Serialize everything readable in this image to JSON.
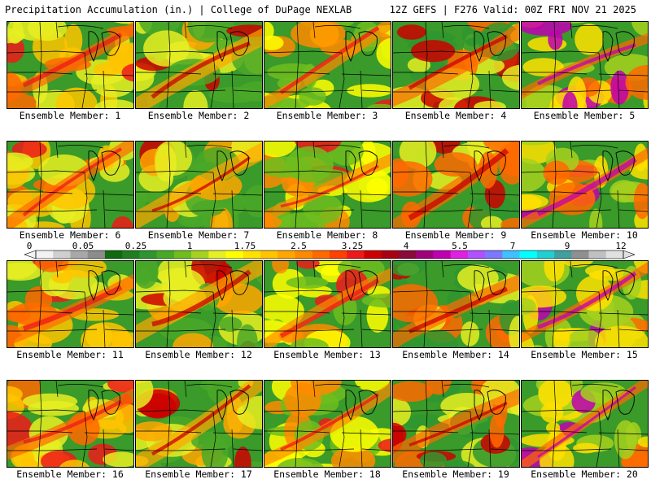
{
  "header": {
    "left": "Precipitation Accumulation (in.) | College of DuPage NEXLAB",
    "right": "12Z GEFS | F276 Valid: 00Z FRI NOV 21 2025"
  },
  "panels": [
    {
      "label": "Ensemble Member: 1"
    },
    {
      "label": "Ensemble Member: 2"
    },
    {
      "label": "Ensemble Member: 3"
    },
    {
      "label": "Ensemble Member: 4"
    },
    {
      "label": "Ensemble Member: 5"
    },
    {
      "label": "Ensemble Member: 6"
    },
    {
      "label": "Ensemble Member: 7"
    },
    {
      "label": "Ensemble Member: 8"
    },
    {
      "label": "Ensemble Member: 9"
    },
    {
      "label": "Ensemble Member: 10"
    },
    {
      "label": "Ensemble Member: 11"
    },
    {
      "label": "Ensemble Member: 12"
    },
    {
      "label": "Ensemble Member: 13"
    },
    {
      "label": "Ensemble Member: 14"
    },
    {
      "label": "Ensemble Member: 15"
    },
    {
      "label": "Ensemble Member: 16"
    },
    {
      "label": "Ensemble Member: 17"
    },
    {
      "label": "Ensemble Member: 18"
    },
    {
      "label": "Ensemble Member: 19"
    },
    {
      "label": "Ensemble Member: 20"
    }
  ],
  "colorbar": {
    "ticks": [
      "0",
      "0.05",
      "0.25",
      "1",
      "1.75",
      "2.5",
      "3.25",
      "4",
      "5.5",
      "7",
      "9",
      "12"
    ],
    "colors": [
      "#f2f2f2",
      "#cfcfcf",
      "#a8a8a8",
      "#8c8c8c",
      "#0f6a10",
      "#1f7e1f",
      "#2f962f",
      "#4aa828",
      "#6fbd1e",
      "#a6d11e",
      "#e6ef22",
      "#ffff00",
      "#ffe000",
      "#ffc400",
      "#ffa600",
      "#ff8a00",
      "#ff6a00",
      "#ff4000",
      "#ee1a1a",
      "#cc0000",
      "#a80010",
      "#8a0a3a",
      "#a0007a",
      "#c000b0",
      "#e020e0",
      "#b050ff",
      "#7a7aff",
      "#40c0ff",
      "#00ffff",
      "#20d0d0",
      "#40a0a0",
      "#909090",
      "#c0c0c0",
      "#e0e0e0"
    ]
  }
}
